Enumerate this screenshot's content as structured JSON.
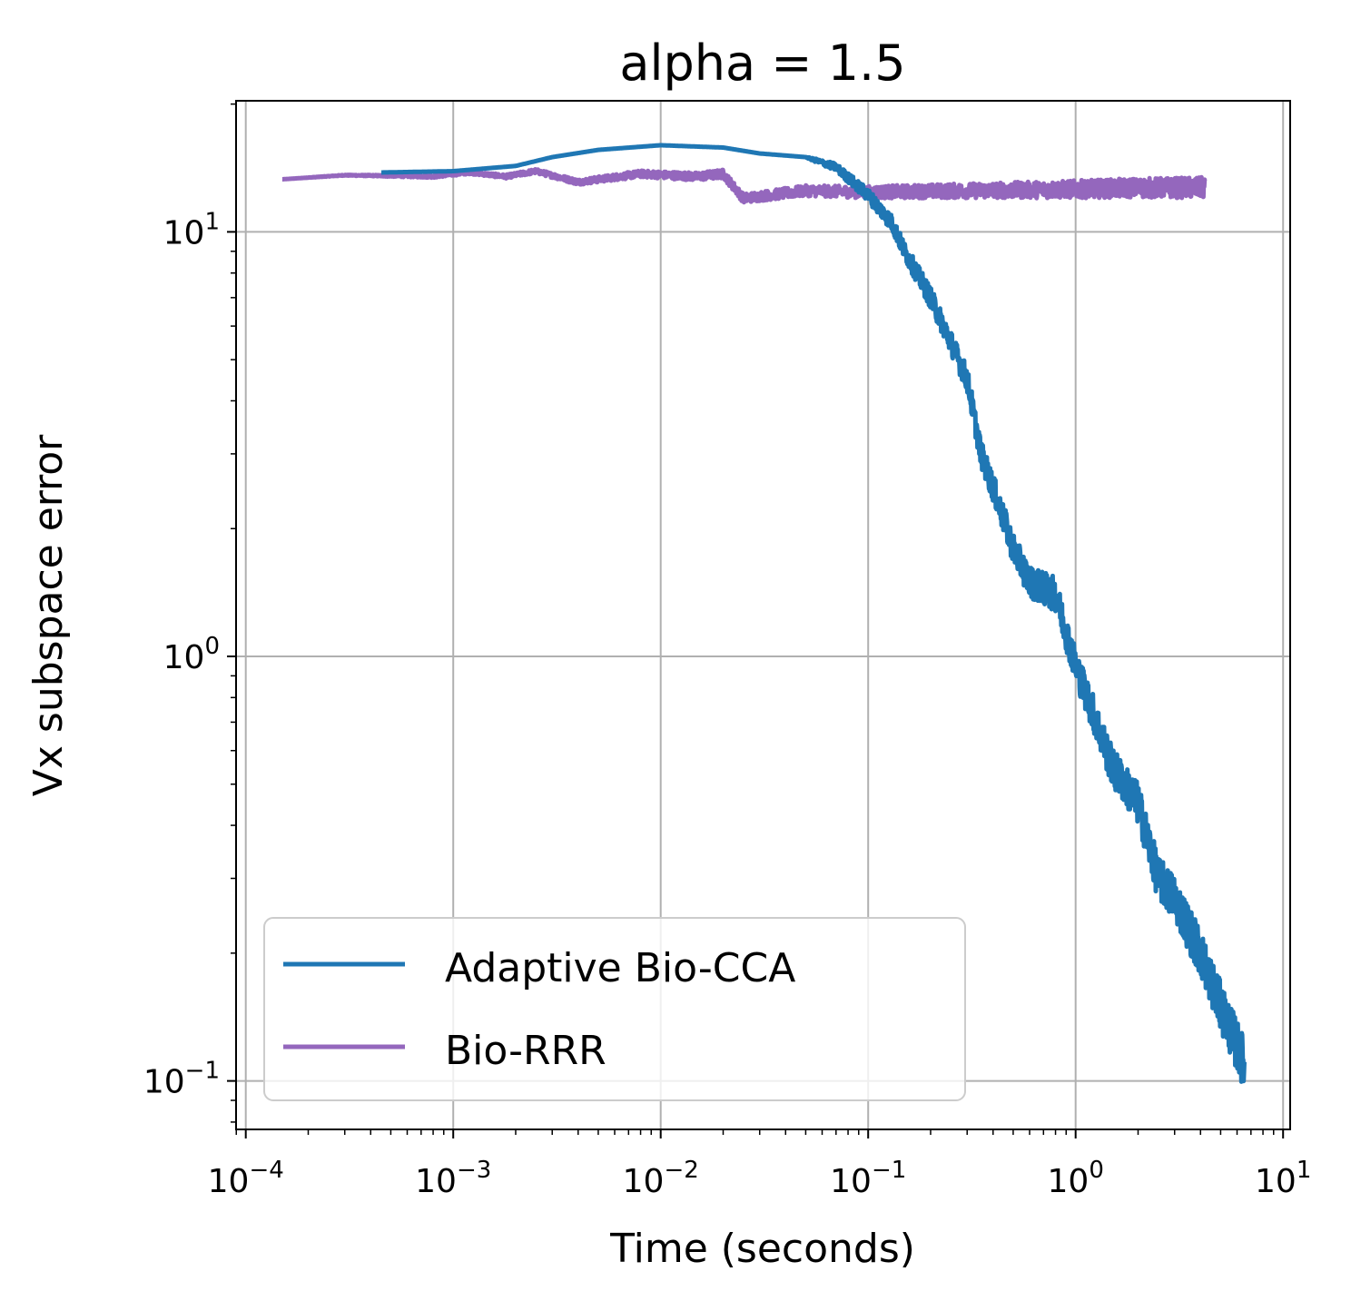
{
  "chart_data": {
    "type": "line",
    "title": "alpha = 1.5",
    "xlabel": "Time (seconds)",
    "ylabel": "Vx subspace error",
    "xscale": "log",
    "yscale": "log",
    "xlim": [
      0.0001,
      10
    ],
    "ylim": [
      0.08,
      20
    ],
    "grid": true,
    "legend_position": "lower-left",
    "x_ticks": [
      {
        "base": "10",
        "exp": "−4"
      },
      {
        "base": "10",
        "exp": "−3"
      },
      {
        "base": "10",
        "exp": "−2"
      },
      {
        "base": "10",
        "exp": "−1"
      },
      {
        "base": "10",
        "exp": "0"
      },
      {
        "base": "10",
        "exp": "1"
      }
    ],
    "y_ticks": [
      {
        "base": "10",
        "exp": "1"
      },
      {
        "base": "10",
        "exp": "0"
      },
      {
        "base": "10",
        "exp": "−1"
      }
    ],
    "series": [
      {
        "name": "Adaptive Bio-CCA",
        "color": "#1f77b4",
        "noise_amplitude": 0.06,
        "points": [
          [
            0.00045,
            13.8
          ],
          [
            0.001,
            13.9
          ],
          [
            0.002,
            14.3
          ],
          [
            0.003,
            15.0
          ],
          [
            0.005,
            15.6
          ],
          [
            0.01,
            16.0
          ],
          [
            0.02,
            15.8
          ],
          [
            0.03,
            15.3
          ],
          [
            0.05,
            15.0
          ],
          [
            0.07,
            14.2
          ],
          [
            0.1,
            12.2
          ],
          [
            0.13,
            10.5
          ],
          [
            0.15,
            9.0
          ],
          [
            0.2,
            7.0
          ],
          [
            0.25,
            5.5
          ],
          [
            0.3,
            4.5
          ],
          [
            0.35,
            3.0
          ],
          [
            0.4,
            2.5
          ],
          [
            0.5,
            1.8
          ],
          [
            0.6,
            1.5
          ],
          [
            0.8,
            1.4
          ],
          [
            1.0,
            0.95
          ],
          [
            1.2,
            0.75
          ],
          [
            1.5,
            0.55
          ],
          [
            2.0,
            0.45
          ],
          [
            2.5,
            0.3
          ],
          [
            3.0,
            0.27
          ],
          [
            4.0,
            0.2
          ],
          [
            5.0,
            0.15
          ],
          [
            6.5,
            0.11
          ]
        ]
      },
      {
        "name": "Bio-RRR",
        "color": "#9467bd",
        "noise_amplitude": 0.025,
        "points": [
          [
            0.00015,
            13.3
          ],
          [
            0.0003,
            13.6
          ],
          [
            0.0008,
            13.5
          ],
          [
            0.0012,
            13.8
          ],
          [
            0.0018,
            13.5
          ],
          [
            0.0025,
            13.9
          ],
          [
            0.004,
            13.1
          ],
          [
            0.008,
            13.7
          ],
          [
            0.015,
            13.5
          ],
          [
            0.02,
            13.7
          ],
          [
            0.025,
            12.0
          ],
          [
            0.05,
            12.5
          ],
          [
            0.1,
            12.4
          ],
          [
            0.3,
            12.5
          ],
          [
            1.0,
            12.6
          ],
          [
            2.0,
            12.7
          ],
          [
            4.2,
            12.7
          ]
        ]
      }
    ]
  }
}
